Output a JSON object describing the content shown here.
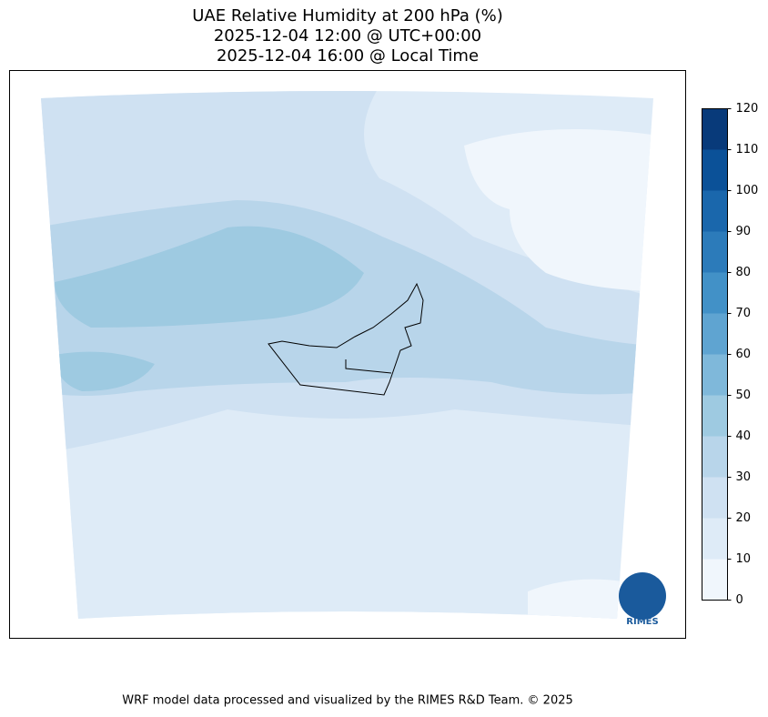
{
  "title": [
    "UAE Relative Humidity at 200 hPa (%)",
    "2025-12-04 12:00 @ UTC+00:00",
    "2025-12-04 16:00 @ Local Time"
  ],
  "colorbar": {
    "ticks": [
      0,
      10,
      20,
      30,
      40,
      50,
      60,
      70,
      80,
      90,
      100,
      110,
      120
    ],
    "colors": [
      "#f0f6fc",
      "#deebf7",
      "#cfe1f2",
      "#b8d5ea",
      "#9ecae1",
      "#7fb8da",
      "#5fa4d1",
      "#4291c7",
      "#2c7bba",
      "#1a67ac",
      "#0b5198",
      "#083a7a"
    ]
  },
  "logo": "RIMES",
  "footer": "WRF model data processed and visualized by the RIMES R&D Team. © 2025"
}
